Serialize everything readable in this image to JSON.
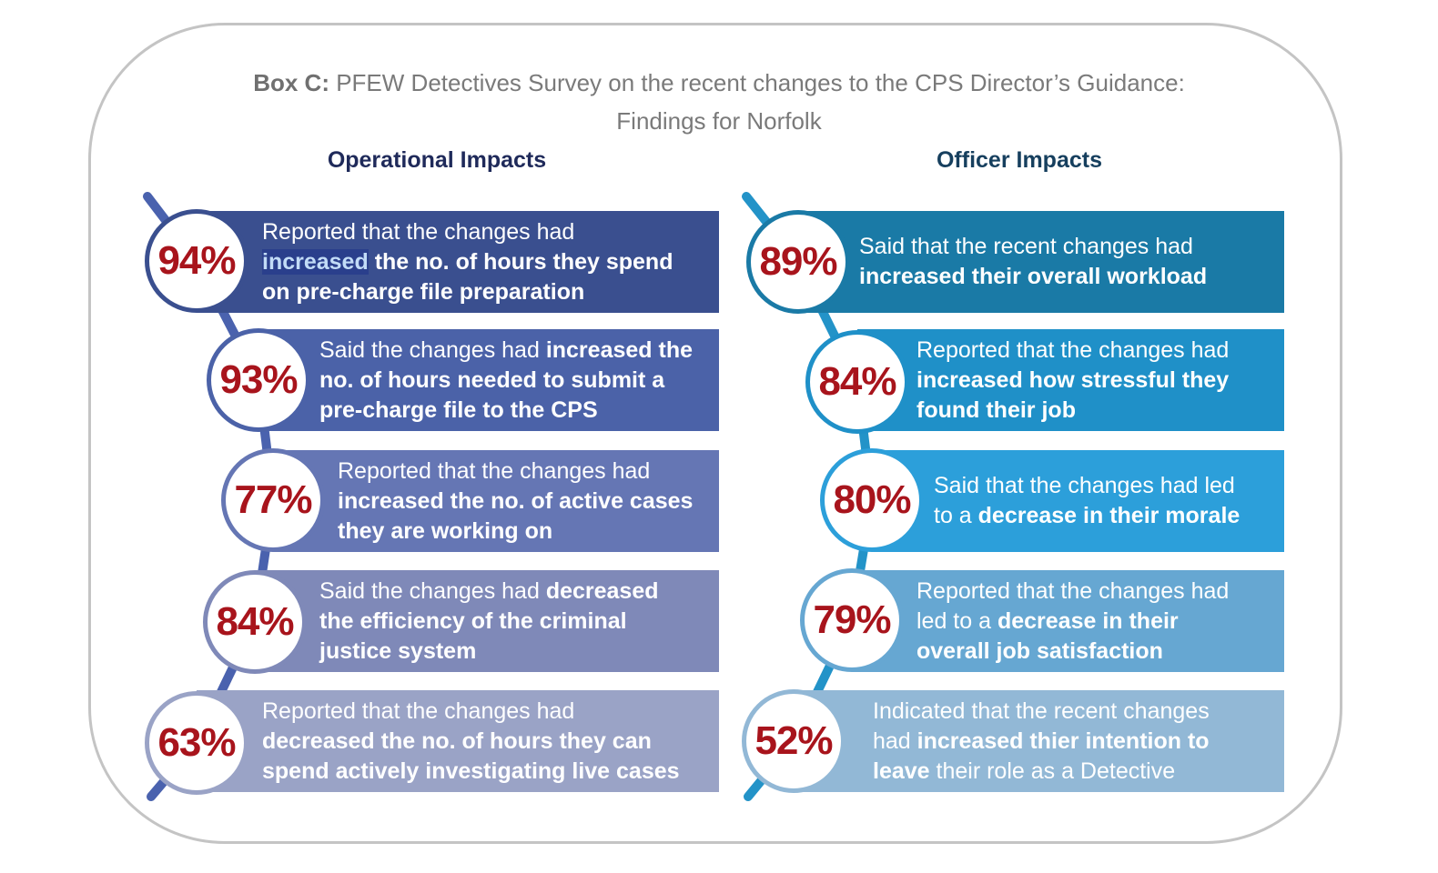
{
  "title": {
    "prefix": "Box C:",
    "line1": " PFEW Detectives Survey on the recent changes to the CPS Director’s Guidance:",
    "line2": "Findings for Norfolk"
  },
  "columns": [
    {
      "heading": "Operational Impacts",
      "spine_color": "#4a62ae",
      "items": [
        {
          "percent": "94%",
          "color": "#3a4f8f",
          "parts": [
            {
              "t": "Reported that the changes had\n"
            },
            {
              "t": "increased",
              "b": true,
              "hl": true
            },
            {
              "t": " the no. of hours they spend\non pre-charge file preparation",
              "b": true
            }
          ]
        },
        {
          "percent": "93%",
          "color": "#4b62a8",
          "parts": [
            {
              "t": "Said the changes had "
            },
            {
              "t": "increased the\nno. of hours needed to submit a\npre-charge file to the CPS",
              "b": true
            }
          ]
        },
        {
          "percent": "77%",
          "color": "#6576b4",
          "parts": [
            {
              "t": "Reported that the changes had\n"
            },
            {
              "t": "increased the no. of active cases\nthey are working on",
              "b": true
            }
          ]
        },
        {
          "percent": "84%",
          "color": "#7f89b8",
          "parts": [
            {
              "t": "Said the changes had "
            },
            {
              "t": "decreased\nthe efficiency of the criminal\njustice system",
              "b": true
            }
          ]
        },
        {
          "percent": "63%",
          "color": "#9aa3c6",
          "parts": [
            {
              "t": "Reported that the changes had\n"
            },
            {
              "t": "decreased the no. of hours they can\nspend actively investigating live cases",
              "b": true
            }
          ]
        }
      ]
    },
    {
      "heading": "Officer Impacts",
      "spine_color": "#2393c8",
      "items": [
        {
          "percent": "89%",
          "color": "#1a7aa6",
          "parts": [
            {
              "t": "Said that the recent changes had\n"
            },
            {
              "t": "increased their overall workload",
              "b": true
            }
          ]
        },
        {
          "percent": "84%",
          "color": "#1f90c8",
          "parts": [
            {
              "t": "Reported that the changes had\n"
            },
            {
              "t": "increased how stressful they\nfound their job",
              "b": true
            }
          ]
        },
        {
          "percent": "80%",
          "color": "#2c9fda",
          "parts": [
            {
              "t": "Said that the changes had led\nto a "
            },
            {
              "t": "decrease in their morale",
              "b": true
            }
          ]
        },
        {
          "percent": "79%",
          "color": "#66a7d2",
          "parts": [
            {
              "t": "Reported that the changes had\nled to a  "
            },
            {
              "t": "decrease in their\noverall job satisfaction",
              "b": true
            }
          ]
        },
        {
          "percent": "52%",
          "color": "#92b8d6",
          "parts": [
            {
              "t": "Indicated that the recent changes\nhad "
            },
            {
              "t": "increased thier intention to\nleave",
              "b": true
            },
            {
              "t": " their role as a Detective"
            }
          ]
        }
      ]
    }
  ]
}
